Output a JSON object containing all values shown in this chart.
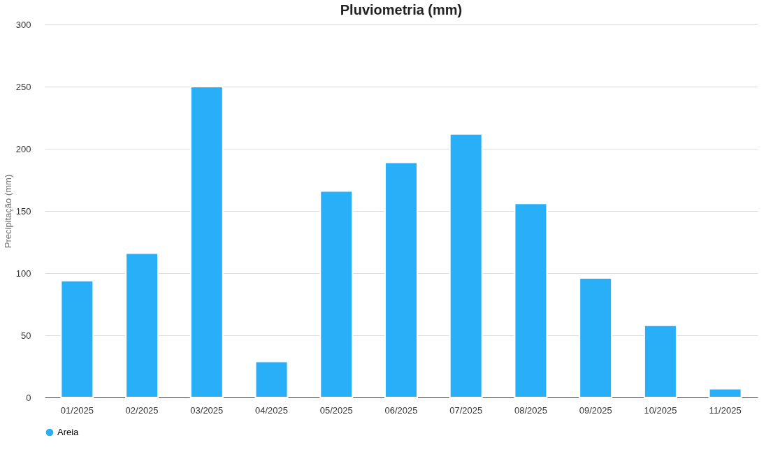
{
  "chart_data": {
    "type": "bar",
    "title": "Pluviometria (mm)",
    "ylabel": "Precipitação (mm)",
    "categories": [
      "01/2025",
      "02/2025",
      "03/2025",
      "04/2025",
      "05/2025",
      "06/2025",
      "07/2025",
      "08/2025",
      "09/2025",
      "10/2025",
      "11/2025"
    ],
    "series": [
      {
        "name": "Areia",
        "color": "#29aff7",
        "values": [
          94,
          116,
          250,
          29,
          166,
          189,
          212,
          156,
          96,
          58,
          7
        ]
      }
    ],
    "ylim": [
      0,
      300
    ],
    "yticks": [
      0,
      50,
      100,
      150,
      200,
      250,
      300
    ],
    "grid": "y",
    "legend": "bottom"
  }
}
